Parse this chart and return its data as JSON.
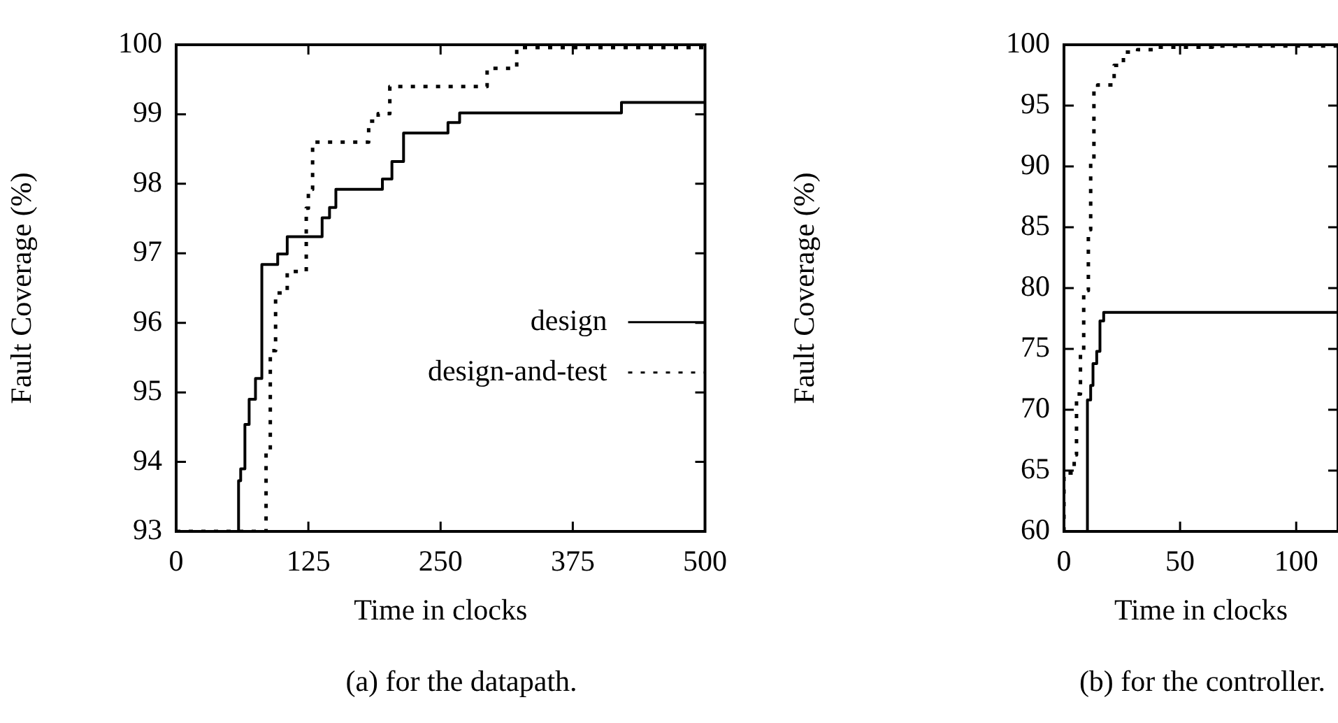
{
  "chart_data": [
    {
      "type": "step",
      "xlabel": "Time in clocks",
      "ylabel": "Fault Coverage (%)",
      "annotations": [
        "(a) for the datapath."
      ],
      "xlim": [
        0,
        500
      ],
      "xticks": [
        0,
        125,
        250,
        375,
        500
      ],
      "ylim": [
        93,
        100
      ],
      "yticks": [
        93,
        94,
        95,
        96,
        97,
        98,
        99,
        100
      ],
      "grid": false,
      "legend": "right",
      "marker": "none",
      "series": [
        {
          "name": "design",
          "color": "#000000",
          "line_style": "solid",
          "x": [
            0,
            59,
            61,
            65,
            69,
            75,
            81,
            96,
            105,
            138,
            145,
            151,
            195,
            204,
            215,
            257,
            268,
            421,
            476,
            500
          ],
          "values": [
            93,
            93,
            93.73,
            93.9,
            94.54,
            94.9,
            95.2,
            96.84,
            96.99,
            97.24,
            97.51,
            97.66,
            97.92,
            98.07,
            98.32,
            98.73,
            98.88,
            99.02,
            99.17,
            99.17
          ]
        },
        {
          "name": "design-and-test",
          "color": "#000000",
          "line_style": "dotted",
          "x": [
            0,
            85,
            89,
            94,
            105,
            123,
            125,
            129,
            147,
            182,
            191,
            202,
            294,
            322,
            421,
            500
          ],
          "values": [
            93,
            93,
            94.13,
            95.6,
            96.43,
            96.74,
            97.65,
            97.92,
            98.6,
            98.6,
            98.9,
            99.01,
            99.4,
            99.66,
            99.96,
            99.96
          ]
        }
      ]
    },
    {
      "type": "step",
      "xlabel": "Time in clocks",
      "ylabel": "Fault Coverage (%)",
      "annotations": [
        "(b) for the controller."
      ],
      "xlim": [
        0,
        118
      ],
      "xticks": [
        0,
        50,
        100
      ],
      "ylim": [
        60,
        100
      ],
      "yticks": [
        60,
        65,
        70,
        75,
        80,
        85,
        90,
        95,
        100
      ],
      "grid": false,
      "legend": false,
      "marker": "none",
      "series": [
        {
          "color": "#000000",
          "line_style": "solid",
          "x": [
            0,
            10.1,
            11.5,
            12.5,
            14.1,
            15.5,
            17.1,
            26.2,
            118
          ],
          "values": [
            60,
            60,
            70.8,
            72,
            73.8,
            74.8,
            77.3,
            78,
            78
          ]
        },
        {
          "color": "#000000",
          "line_style": "dotted",
          "x": [
            0,
            4.4,
            5.4,
            7.1,
            8.5,
            10.5,
            11.5,
            12.9,
            14.5,
            21.6,
            25.6,
            31.7,
            39.7,
            63.9,
            118
          ],
          "values": [
            60,
            64.8,
            66.3,
            71.3,
            74.8,
            79.8,
            84.8,
            90.6,
            96.5,
            96.7,
            98.3,
            99.4,
            99.6,
            99.8,
            99.9
          ]
        }
      ]
    }
  ]
}
